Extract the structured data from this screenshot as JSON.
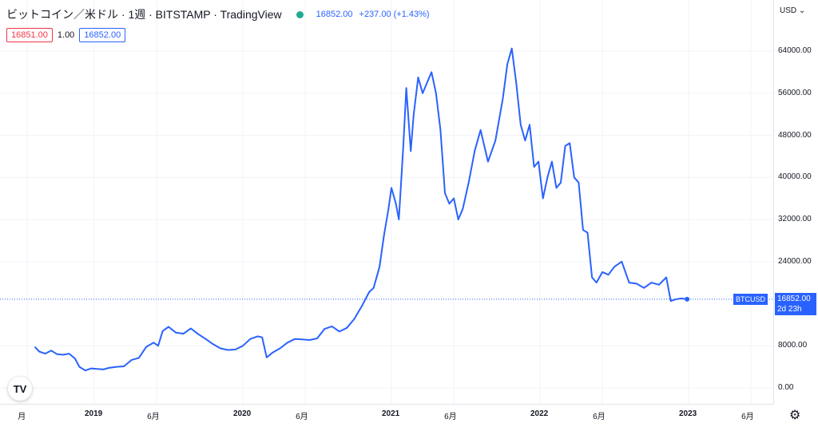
{
  "header": {
    "title": "ビットコイン／米ドル · 1週 · BITSTAMP · TradingView",
    "last": "16852.00",
    "change": "+237.00 (+1.43%)"
  },
  "order": {
    "sell": "16851.00",
    "spread": "1.00",
    "buy": "16852.00"
  },
  "axis": {
    "currency": "USD"
  },
  "badge": {
    "symbol": "BTCUSD",
    "price": "16852.00",
    "countdown": "2d 23h"
  },
  "logo": "TV",
  "colors": {
    "line": "#2962ff",
    "up": "#22ab94",
    "down": "#f23645"
  },
  "chart_data": {
    "type": "line",
    "series": [
      {
        "x": [
          2018.6,
          2018.63,
          2018.67,
          2018.71,
          2018.75,
          2018.79,
          2018.83,
          2018.87,
          2018.9,
          2018.94,
          2018.98,
          2019.02,
          2019.06,
          2019.1,
          2019.15,
          2019.2,
          2019.25,
          2019.3,
          2019.35,
          2019.4,
          2019.43,
          2019.46,
          2019.5,
          2019.55,
          2019.6,
          2019.65,
          2019.7,
          2019.75,
          2019.8,
          2019.85,
          2019.9,
          2019.95,
          2020.0,
          2020.05,
          2020.1,
          2020.13,
          2020.16,
          2020.2,
          2020.25,
          2020.3,
          2020.35,
          2020.4,
          2020.45,
          2020.5,
          2020.55,
          2020.6,
          2020.65,
          2020.7,
          2020.75,
          2020.8,
          2020.85,
          2020.88,
          2020.92,
          2020.95,
          2020.98,
          2021.0,
          2021.03,
          2021.05,
          2021.08,
          2021.1,
          2021.13,
          2021.15,
          2021.18,
          2021.21,
          2021.24,
          2021.27,
          2021.3,
          2021.33,
          2021.36,
          2021.39,
          2021.42,
          2021.45,
          2021.48,
          2021.52,
          2021.56,
          2021.6,
          2021.65,
          2021.7,
          2021.75,
          2021.78,
          2021.81,
          2021.84,
          2021.87,
          2021.9,
          2021.93,
          2021.96,
          2021.99,
          2022.02,
          2022.05,
          2022.08,
          2022.11,
          2022.14,
          2022.17,
          2022.2,
          2022.23,
          2022.26,
          2022.29,
          2022.32,
          2022.35,
          2022.38,
          2022.42,
          2022.46,
          2022.5,
          2022.55,
          2022.6,
          2022.65,
          2022.7,
          2022.75,
          2022.8,
          2022.85,
          2022.88,
          2022.91,
          2022.95,
          2022.99
        ],
        "y": [
          7800,
          6900,
          6500,
          7100,
          6400,
          6300,
          6500,
          5600,
          4000,
          3300,
          3700,
          3600,
          3500,
          3800,
          4000,
          4100,
          5300,
          5700,
          7800,
          8600,
          8000,
          10800,
          11600,
          10500,
          10300,
          11300,
          10200,
          9300,
          8300,
          7500,
          7200,
          7300,
          8000,
          9300,
          9800,
          9600,
          5800,
          6700,
          7500,
          8600,
          9300,
          9200,
          9100,
          9400,
          11200,
          11700,
          10700,
          11400,
          13100,
          15500,
          18200,
          19000,
          23000,
          29000,
          34000,
          38000,
          35000,
          32000,
          46000,
          57000,
          45000,
          52000,
          59000,
          56000,
          58000,
          60000,
          56000,
          49000,
          37000,
          35000,
          36000,
          32000,
          34000,
          39000,
          45000,
          49000,
          43000,
          47000,
          55000,
          61500,
          64500,
          58000,
          50000,
          47000,
          50000,
          42000,
          43000,
          36000,
          40000,
          43000,
          38000,
          39000,
          46000,
          46500,
          40000,
          39000,
          30000,
          29500,
          21000,
          20000,
          22000,
          21500,
          23000,
          24000,
          20000,
          19800,
          19000,
          20000,
          19600,
          21000,
          16500,
          16800,
          17000,
          16852
        ]
      }
    ],
    "ylim": [
      0,
      70000
    ],
    "yticks": [
      "64000.00",
      "56000.00",
      "48000.00",
      "40000.00",
      "32000.00",
      "24000.00",
      "8000.00",
      "0.00"
    ],
    "ytick_values": [
      64000,
      56000,
      48000,
      40000,
      32000,
      24000,
      8000,
      0
    ],
    "xticks": [
      "月",
      "2019",
      "6月",
      "2020",
      "6月",
      "2021",
      "6月",
      "2022",
      "6月",
      "2023",
      "6月"
    ],
    "xtick_values": [
      2018.55,
      2019.0,
      2019.42,
      2020.0,
      2020.42,
      2021.0,
      2021.42,
      2022.0,
      2022.42,
      2023.0,
      2023.42
    ],
    "last_value": 16852,
    "grid": true
  }
}
